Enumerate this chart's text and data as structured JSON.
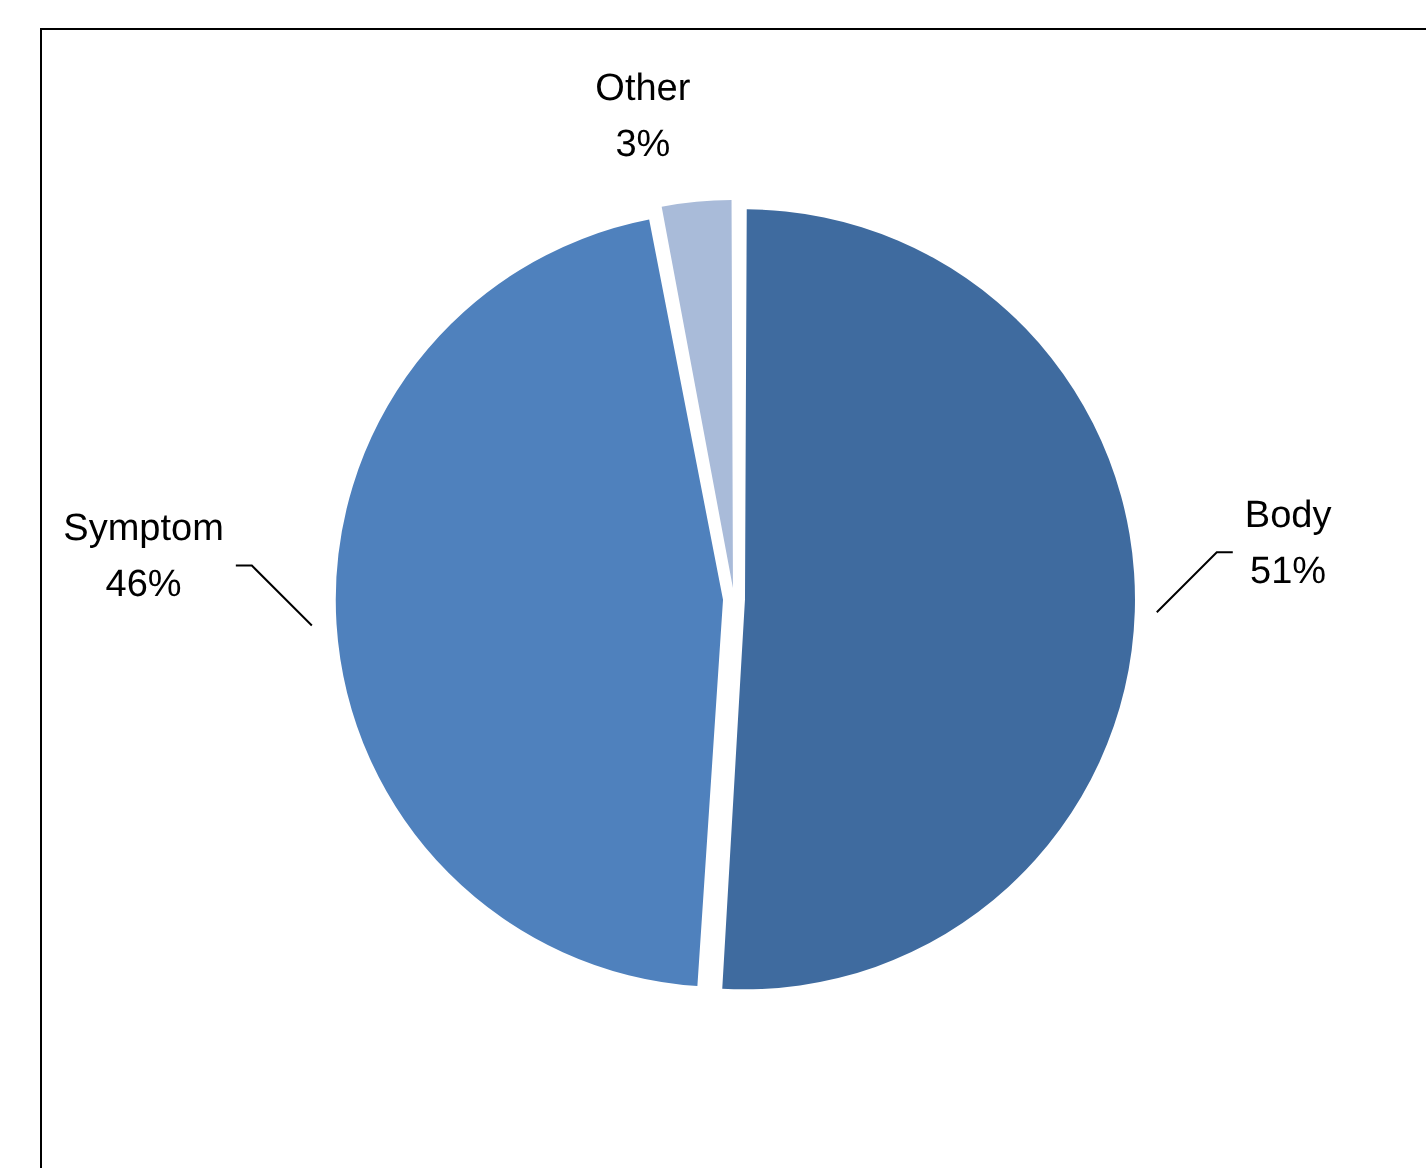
{
  "chart_data": {
    "type": "pie",
    "categories": [
      "Body",
      "Symptom",
      "Other"
    ],
    "values": [
      51,
      46,
      3
    ],
    "colors": [
      "#3f6b9f",
      "#4f81bd",
      "#a9bbd9"
    ],
    "value_labels": [
      "51%",
      "46%",
      "3%"
    ],
    "legend": false
  }
}
